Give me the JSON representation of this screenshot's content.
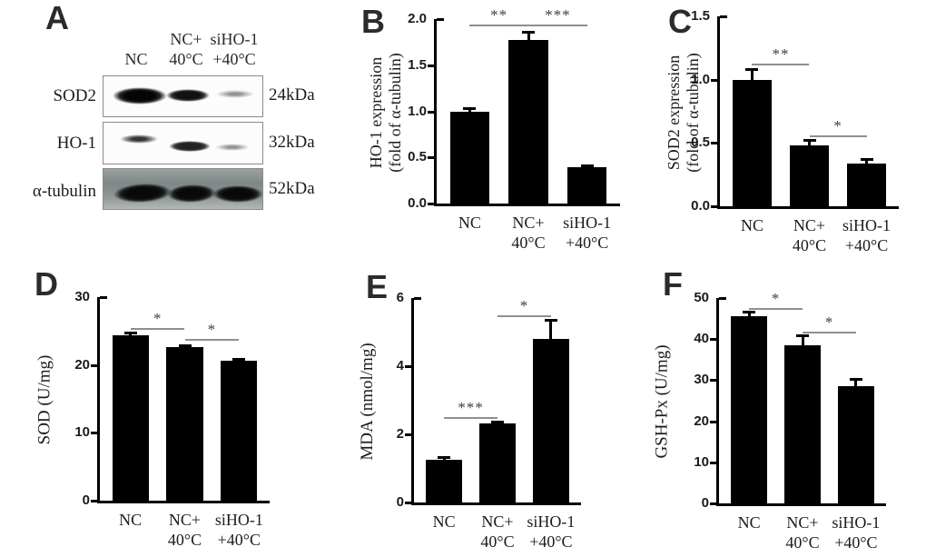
{
  "blot_panel": {
    "letter": "A",
    "lane_headers": [
      "NC",
      "NC+\n40°C",
      "siHO-1\n+40°C"
    ],
    "rows": [
      {
        "protein": "SOD2",
        "kda": "24kDa",
        "band_intensities": [
          "strong",
          "strong",
          "faint"
        ]
      },
      {
        "protein": "HO-1",
        "kda": "32kDa",
        "band_intensities": [
          "medium",
          "strong",
          "faint"
        ]
      },
      {
        "protein": "α-tubulin",
        "kda": "52kDa",
        "band_intensities": [
          "strong",
          "strong",
          "strong"
        ]
      }
    ]
  },
  "chart_data": [
    {
      "panel": "B",
      "type": "bar",
      "categories": [
        "NC",
        "NC+\n40°C",
        "siHO-1\n+40°C"
      ],
      "values": [
        1.0,
        1.77,
        0.39
      ],
      "errors": [
        0.03,
        0.09,
        0.02
      ],
      "ylabel": "HO-1 expression\n(fold of α-tubulin)",
      "xlabel": "",
      "ylim": [
        0,
        2.0
      ],
      "yticks": [
        0.0,
        0.5,
        1.0,
        1.5,
        2.0
      ],
      "ytick_labels": [
        "0.0",
        "0.5",
        "1.0",
        "1.5",
        "2.0"
      ],
      "significance": [
        {
          "between": [
            0,
            1
          ],
          "label": "**",
          "y": 1.94
        },
        {
          "between": [
            1,
            2
          ],
          "label": "***",
          "y": 1.94
        }
      ],
      "bar_color": "#000000",
      "axis_color": "#000000",
      "sig_line_color": "#8f8f8f",
      "grid": false,
      "legend": null
    },
    {
      "panel": "C",
      "type": "bar",
      "categories": [
        "NC",
        "NC+\n40°C",
        "siHO-1\n+40°C"
      ],
      "values": [
        1.0,
        0.48,
        0.34
      ],
      "errors": [
        0.08,
        0.04,
        0.03
      ],
      "ylabel": "SOD2 expression\n(fold of α-tubulin)",
      "xlabel": "",
      "ylim": [
        0,
        1.5
      ],
      "yticks": [
        0.0,
        0.5,
        1.0,
        1.5
      ],
      "ytick_labels": [
        "0.0",
        "0.5",
        "1.0",
        "1.5"
      ],
      "significance": [
        {
          "between": [
            0,
            1
          ],
          "label": "**",
          "y": 1.13
        },
        {
          "between": [
            1,
            2
          ],
          "label": "*",
          "y": 0.56
        }
      ],
      "bar_color": "#000000",
      "axis_color": "#000000",
      "sig_line_color": "#8f8f8f",
      "grid": false,
      "legend": null
    },
    {
      "panel": "D",
      "type": "bar",
      "categories": [
        "NC",
        "NC+\n40°C",
        "siHO-1\n+40°C"
      ],
      "values": [
        24.4,
        22.6,
        20.6
      ],
      "errors": [
        0.3,
        0.2,
        0.25
      ],
      "ylabel": "SOD (U/mg)",
      "xlabel": "",
      "ylim": [
        0,
        30
      ],
      "yticks": [
        0,
        10,
        20,
        30
      ],
      "ytick_labels": [
        "0",
        "10",
        "20",
        "30"
      ],
      "significance": [
        {
          "between": [
            0,
            1
          ],
          "label": "*",
          "y": 25.5
        },
        {
          "between": [
            1,
            2
          ],
          "label": "*",
          "y": 23.9
        }
      ],
      "bar_color": "#000000",
      "axis_color": "#000000",
      "sig_line_color": "#8f8f8f",
      "grid": false,
      "legend": null
    },
    {
      "panel": "E",
      "type": "bar",
      "categories": [
        "NC",
        "NC+\n40°C",
        "siHO-1\n+40°C"
      ],
      "values": [
        1.26,
        2.33,
        4.8
      ],
      "errors": [
        0.05,
        0.04,
        0.55
      ],
      "ylabel": "MDA (nmol/mg)",
      "xlabel": "",
      "ylim": [
        0,
        6
      ],
      "yticks": [
        0,
        2,
        4,
        6
      ],
      "ytick_labels": [
        "0",
        "2",
        "4",
        "6"
      ],
      "significance": [
        {
          "between": [
            0,
            1
          ],
          "label": "***",
          "y": 2.5
        },
        {
          "between": [
            1,
            2
          ],
          "label": "*",
          "y": 5.5
        }
      ],
      "bar_color": "#000000",
      "axis_color": "#000000",
      "sig_line_color": "#8f8f8f",
      "grid": false,
      "legend": null
    },
    {
      "panel": "F",
      "type": "bar",
      "categories": [
        "NC",
        "NC+\n40°C",
        "siHO-1\n+40°C"
      ],
      "values": [
        45.6,
        38.6,
        28.5
      ],
      "errors": [
        1.0,
        2.2,
        1.7
      ],
      "ylabel": "GSH-Px (U/mg)",
      "xlabel": "",
      "ylim": [
        0,
        50
      ],
      "yticks": [
        0,
        10,
        20,
        30,
        40,
        50
      ],
      "ytick_labels": [
        "0",
        "10",
        "20",
        "30",
        "40",
        "50"
      ],
      "significance": [
        {
          "between": [
            0,
            1
          ],
          "label": "*",
          "y": 47.6
        },
        {
          "between": [
            1,
            2
          ],
          "label": "*",
          "y": 41.8
        }
      ],
      "bar_color": "#000000",
      "axis_color": "#000000",
      "sig_line_color": "#8f8f8f",
      "grid": false,
      "legend": null
    }
  ]
}
